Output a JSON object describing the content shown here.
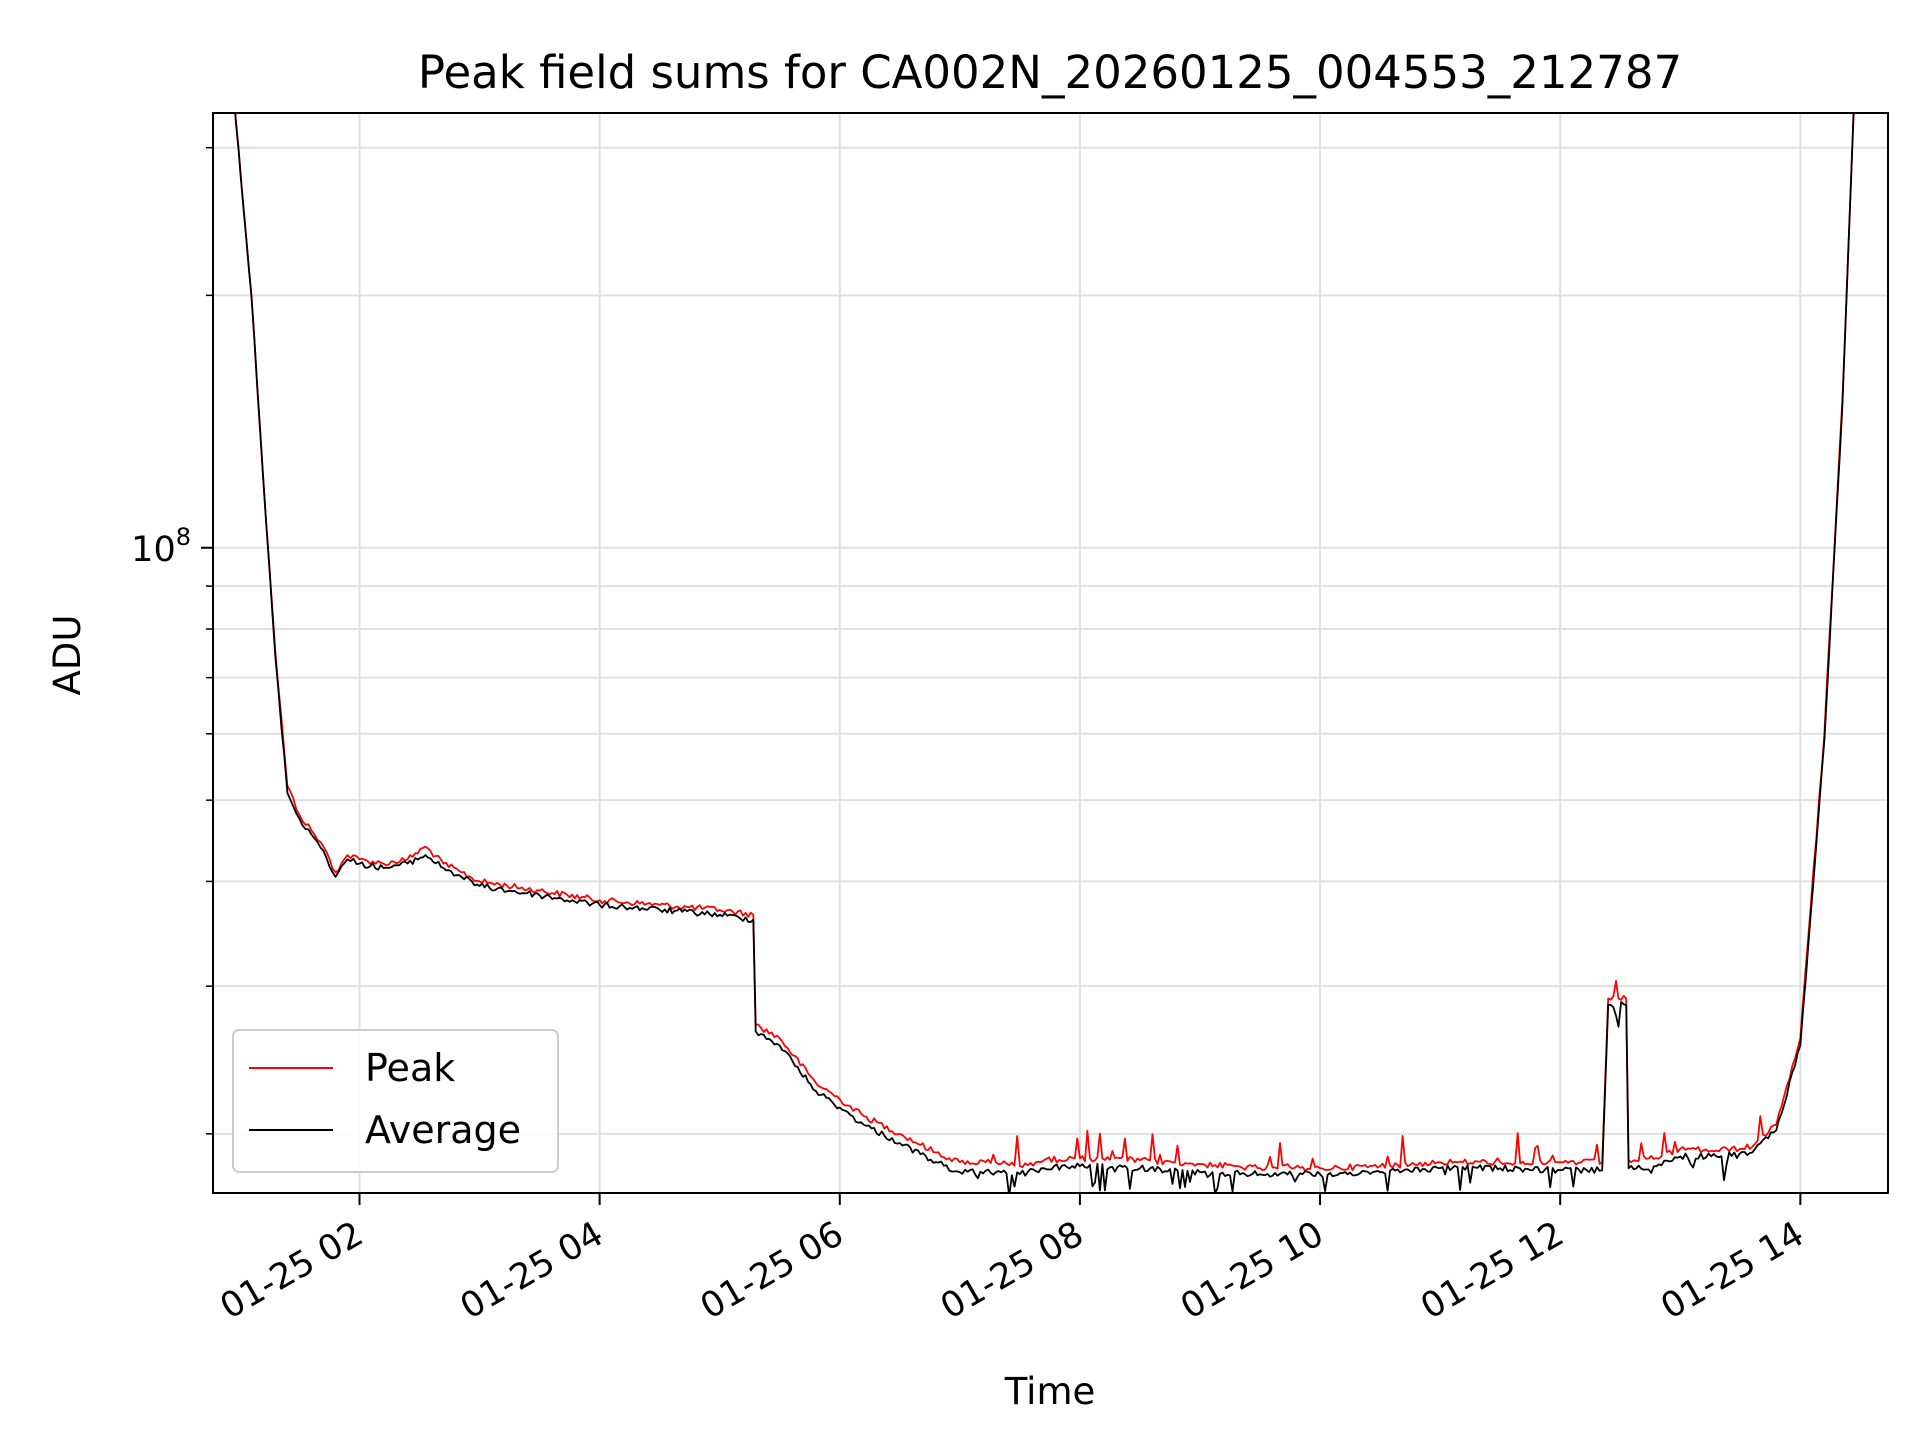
{
  "chart_data": {
    "type": "line",
    "title": "Peak field sums for CA002N_20260125_004553_212787",
    "xlabel": "Time",
    "ylabel": "ADU",
    "y_scale": "log",
    "y_ticks": [
      {
        "value": 100000000,
        "base": "10",
        "exp": "8"
      }
    ],
    "x_ticks": [
      "01-25 02",
      "01-25 04",
      "01-25 06",
      "01-25 08",
      "01-25 10",
      "01-25 12",
      "01-25 14"
    ],
    "x_tick_hours": [
      2,
      4,
      6,
      8,
      10,
      12,
      14
    ],
    "xlim_hours": [
      0.78,
      14.73
    ],
    "ylim": [
      17000000,
      330000000
    ],
    "grid": true,
    "legend_position": "lower-left",
    "series": [
      {
        "name": "Peak",
        "color": "#ff0000",
        "x_hours": [
          0.95,
          1.1,
          1.2,
          1.3,
          1.4,
          1.5,
          1.6,
          1.7,
          1.8,
          1.9,
          2.0,
          2.2,
          2.4,
          2.55,
          2.7,
          2.85,
          3.0,
          3.5,
          4.0,
          4.5,
          5.0,
          5.28,
          5.3,
          5.5,
          5.8,
          6.0,
          6.2,
          6.5,
          6.8,
          7.0,
          7.3,
          7.5,
          7.7,
          8.0,
          8.5,
          9.0,
          9.5,
          10.0,
          10.5,
          11.0,
          11.5,
          12.0,
          12.35,
          12.4,
          12.55,
          12.57,
          12.8,
          13.0,
          13.3,
          13.6,
          13.8,
          14.0,
          14.2,
          14.35,
          14.45
        ],
        "y": [
          350000000,
          200000000,
          120000000,
          75000000,
          52000000,
          48000000,
          46000000,
          44000000,
          41000000,
          43000000,
          42500000,
          42000000,
          42500000,
          44000000,
          42000000,
          41000000,
          40000000,
          39000000,
          38000000,
          37500000,
          37000000,
          36500000,
          27000000,
          26000000,
          23000000,
          22000000,
          21000000,
          20000000,
          19000000,
          18500000,
          18500000,
          18300000,
          18600000,
          18700000,
          18600000,
          18400000,
          18200000,
          18200000,
          18300000,
          18500000,
          18500000,
          18500000,
          18500000,
          29000000,
          29000000,
          18600000,
          18700000,
          19200000,
          19100000,
          19300000,
          20500000,
          26000000,
          60000000,
          150000000,
          350000000
        ]
      },
      {
        "name": "Average",
        "color": "#000000",
        "x_hours": [
          0.95,
          1.1,
          1.2,
          1.3,
          1.4,
          1.5,
          1.6,
          1.7,
          1.8,
          1.9,
          2.0,
          2.2,
          2.4,
          2.55,
          2.7,
          2.85,
          3.0,
          3.5,
          4.0,
          4.5,
          5.0,
          5.28,
          5.3,
          5.5,
          5.8,
          6.0,
          6.2,
          6.5,
          6.8,
          7.0,
          7.3,
          7.5,
          7.7,
          8.0,
          8.5,
          9.0,
          9.5,
          10.0,
          10.5,
          11.0,
          11.5,
          12.0,
          12.35,
          12.4,
          12.55,
          12.57,
          12.8,
          13.0,
          13.3,
          13.6,
          13.8,
          14.0,
          14.2,
          14.35,
          14.45
        ],
        "y": [
          350000000,
          200000000,
          120000000,
          74000000,
          51000000,
          47500000,
          45500000,
          43500000,
          40500000,
          42500000,
          42000000,
          41500000,
          42000000,
          43000000,
          41500000,
          40500000,
          39500000,
          38500000,
          37500000,
          37000000,
          36500000,
          36000000,
          26500000,
          25500000,
          22500000,
          21500000,
          20500000,
          19500000,
          18500000,
          18000000,
          18000000,
          17900000,
          18200000,
          18300000,
          18200000,
          18000000,
          17900000,
          17900000,
          18000000,
          18200000,
          18200000,
          18100000,
          18100000,
          28500000,
          28500000,
          18200000,
          18300000,
          18800000,
          18800000,
          19000000,
          20200000,
          25500000,
          59000000,
          148000000,
          350000000
        ]
      }
    ]
  }
}
